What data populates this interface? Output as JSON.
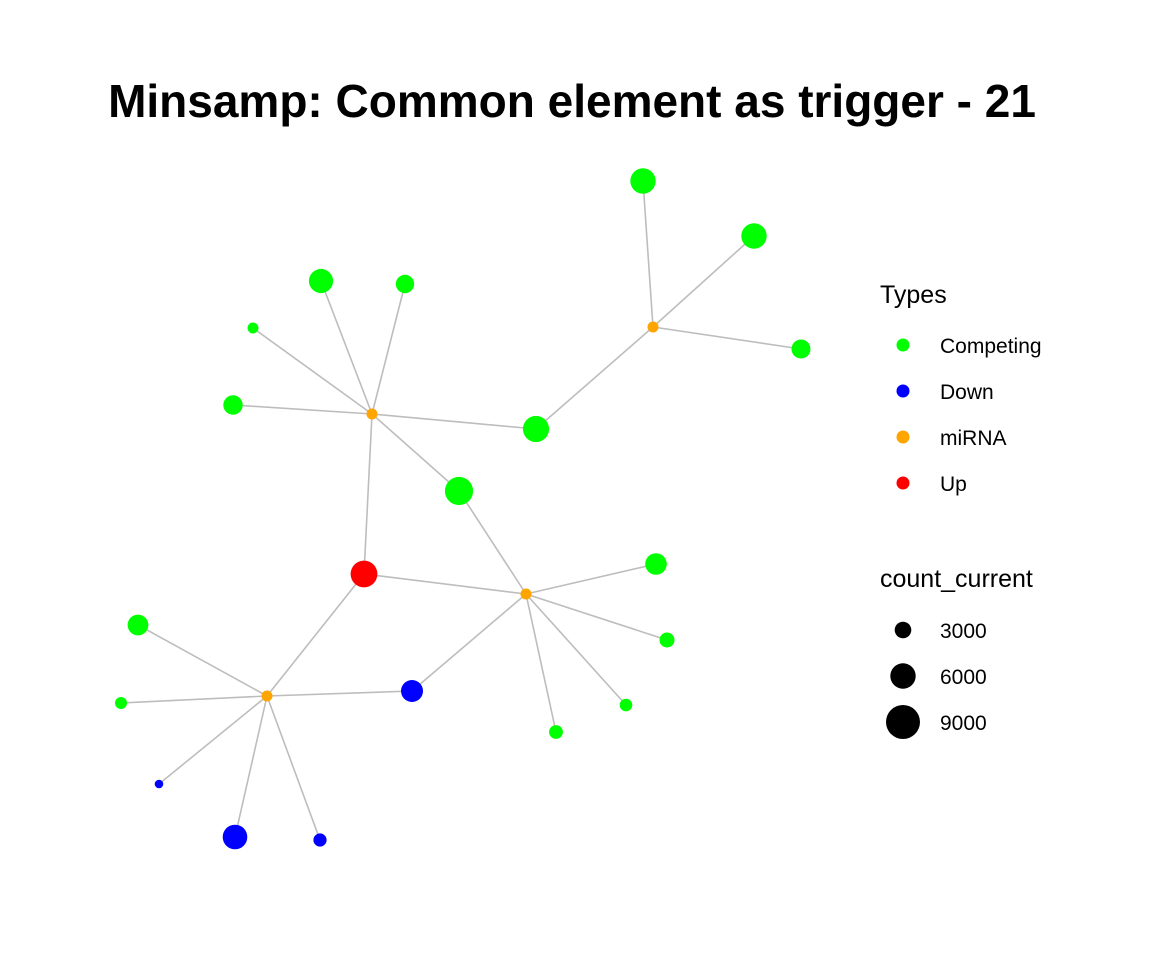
{
  "title": "Minsamp: Common element as trigger - 21",
  "colors": {
    "Competing": "#00ff00",
    "Down": "#0000ff",
    "miRNA": "#ffa500",
    "Up": "#ff0000",
    "edge": "#bdbdbd"
  },
  "legend": {
    "types_title": "Types",
    "types": [
      {
        "label": "Competing",
        "type": "Competing"
      },
      {
        "label": "Down",
        "type": "Down"
      },
      {
        "label": "miRNA",
        "type": "miRNA"
      },
      {
        "label": "Up",
        "type": "Up"
      }
    ],
    "size_title": "count_current",
    "sizes": [
      {
        "label": "3000",
        "value": 3000
      },
      {
        "label": "6000",
        "value": 6000
      },
      {
        "label": "9000",
        "value": 9000
      }
    ]
  },
  "graph": {
    "nodes": [
      {
        "id": "m1",
        "type": "miRNA"
      },
      {
        "id": "m2",
        "type": "miRNA"
      },
      {
        "id": "m3",
        "type": "miRNA"
      },
      {
        "id": "m4",
        "type": "miRNA"
      },
      {
        "id": "up1",
        "type": "Up",
        "count": 6500
      },
      {
        "id": "c1",
        "type": "Competing",
        "count": 6000
      },
      {
        "id": "c2",
        "type": "Competing",
        "count": 6000
      },
      {
        "id": "c3",
        "type": "Competing",
        "count": 3800
      },
      {
        "id": "c4",
        "type": "Competing",
        "count": 5600
      },
      {
        "id": "c5",
        "type": "Competing",
        "count": 3600
      },
      {
        "id": "c6",
        "type": "Competing",
        "count": 1000
      },
      {
        "id": "c7",
        "type": "Competing",
        "count": 3900
      },
      {
        "id": "c8",
        "type": "Competing",
        "count": 6300
      },
      {
        "id": "c9",
        "type": "Competing",
        "count": 7000
      },
      {
        "id": "c10",
        "type": "Competing",
        "count": 4700
      },
      {
        "id": "c11",
        "type": "Competing",
        "count": 2400
      },
      {
        "id": "c12",
        "type": "Competing",
        "count": 1600
      },
      {
        "id": "c13",
        "type": "Competing",
        "count": 2000
      },
      {
        "id": "c14",
        "type": "Competing",
        "count": 4400
      },
      {
        "id": "c15",
        "type": "Competing",
        "count": 1400
      },
      {
        "id": "d1",
        "type": "Down",
        "count": 4800
      },
      {
        "id": "d2",
        "type": "Down",
        "count": 200
      },
      {
        "id": "d3",
        "type": "Down",
        "count": 5700
      },
      {
        "id": "d4",
        "type": "Down",
        "count": 1800
      }
    ],
    "edges": [
      [
        "m1",
        "c1"
      ],
      [
        "m1",
        "c2"
      ],
      [
        "m1",
        "c3"
      ],
      [
        "m1",
        "c8"
      ],
      [
        "m2",
        "c4"
      ],
      [
        "m2",
        "c5"
      ],
      [
        "m2",
        "c6"
      ],
      [
        "m2",
        "c7"
      ],
      [
        "m2",
        "c8"
      ],
      [
        "m2",
        "c9"
      ],
      [
        "m2",
        "up1"
      ],
      [
        "m3",
        "up1"
      ],
      [
        "m3",
        "c9"
      ],
      [
        "m3",
        "c10"
      ],
      [
        "m3",
        "c11"
      ],
      [
        "m3",
        "c12"
      ],
      [
        "m3",
        "c13"
      ],
      [
        "m3",
        "d1"
      ],
      [
        "m4",
        "up1"
      ],
      [
        "m4",
        "c14"
      ],
      [
        "m4",
        "c15"
      ],
      [
        "m4",
        "d1"
      ],
      [
        "m4",
        "d2"
      ],
      [
        "m4",
        "d3"
      ],
      [
        "m4",
        "d4"
      ]
    ]
  }
}
